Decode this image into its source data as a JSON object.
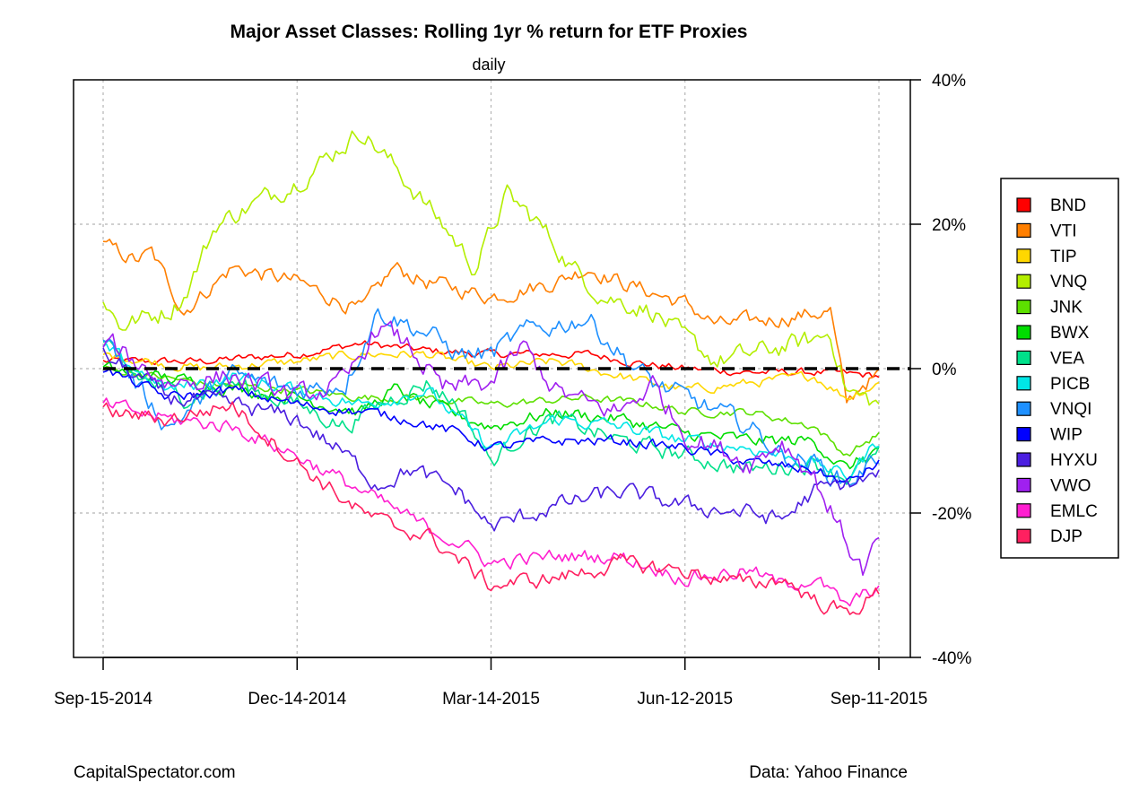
{
  "chart_data": {
    "type": "line",
    "title": "Major Asset Classes: Rolling 1yr % return for ETF Proxies",
    "subtitle": "daily",
    "xlabel": "",
    "ylabel": "",
    "x_start": "Sep-15-2014",
    "x_end": "Sep-11-2015",
    "x_ticks": [
      {
        "index": 0,
        "label": "Sep-15-2014"
      },
      {
        "index": 60,
        "label": "Dec-14-2014"
      },
      {
        "index": 120,
        "label": "Mar-14-2015"
      },
      {
        "index": 180,
        "label": "Jun-12-2015"
      },
      {
        "index": 240,
        "label": "Sep-11-2015"
      }
    ],
    "y_ticks": [
      {
        "value": 40,
        "label": "40%"
      },
      {
        "value": 20,
        "label": "20%"
      },
      {
        "value": 0,
        "label": "0%"
      },
      {
        "value": -20,
        "label": "-20%"
      },
      {
        "value": -40,
        "label": "-40%"
      }
    ],
    "xlim": [
      0,
      240
    ],
    "ylim": [
      -40,
      40
    ],
    "grid": true,
    "reference_line": 0,
    "legend_position": "right",
    "series": [
      {
        "name": "BND",
        "color": "#ff0000",
        "anchors": [
          [
            0,
            1
          ],
          [
            30,
            1
          ],
          [
            60,
            2
          ],
          [
            80,
            3.5
          ],
          [
            100,
            2.5
          ],
          [
            120,
            2
          ],
          [
            150,
            2
          ],
          [
            170,
            0.5
          ],
          [
            180,
            0
          ],
          [
            200,
            -0.5
          ],
          [
            220,
            -0.5
          ],
          [
            240,
            -1
          ]
        ],
        "noise": 0.6
      },
      {
        "name": "VTI",
        "color": "#ff7f00",
        "anchors": [
          [
            0,
            17
          ],
          [
            10,
            15
          ],
          [
            15,
            16
          ],
          [
            20,
            12
          ],
          [
            25,
            8
          ],
          [
            30,
            10
          ],
          [
            40,
            14
          ],
          [
            60,
            12
          ],
          [
            80,
            8
          ],
          [
            90,
            14
          ],
          [
            100,
            12
          ],
          [
            120,
            10
          ],
          [
            140,
            12
          ],
          [
            150,
            14
          ],
          [
            160,
            12
          ],
          [
            180,
            9
          ],
          [
            190,
            6
          ],
          [
            210,
            7
          ],
          [
            225,
            8
          ],
          [
            230,
            -5
          ],
          [
            235,
            -2
          ],
          [
            240,
            -1
          ]
        ],
        "noise": 1.2
      },
      {
        "name": "TIP",
        "color": "#ffd700",
        "anchors": [
          [
            0,
            2
          ],
          [
            30,
            0
          ],
          [
            60,
            1
          ],
          [
            80,
            2
          ],
          [
            100,
            2
          ],
          [
            120,
            0
          ],
          [
            140,
            1
          ],
          [
            160,
            -1
          ],
          [
            180,
            -3
          ],
          [
            200,
            -2
          ],
          [
            220,
            -1
          ],
          [
            230,
            -4
          ],
          [
            240,
            -2
          ]
        ],
        "noise": 0.7
      },
      {
        "name": "VNQ",
        "color": "#b3ee00",
        "anchors": [
          [
            0,
            10
          ],
          [
            5,
            6
          ],
          [
            20,
            8
          ],
          [
            25,
            10
          ],
          [
            35,
            20
          ],
          [
            60,
            26
          ],
          [
            80,
            33
          ],
          [
            90,
            28
          ],
          [
            105,
            20
          ],
          [
            115,
            14
          ],
          [
            125,
            24
          ],
          [
            135,
            20
          ],
          [
            145,
            14
          ],
          [
            155,
            10
          ],
          [
            170,
            8
          ],
          [
            180,
            4
          ],
          [
            190,
            1
          ],
          [
            210,
            3
          ],
          [
            220,
            4
          ],
          [
            225,
            5
          ],
          [
            230,
            -3
          ],
          [
            240,
            -5
          ]
        ],
        "noise": 1.5
      },
      {
        "name": "JNK",
        "color": "#5de000",
        "anchors": [
          [
            0,
            0
          ],
          [
            30,
            -2
          ],
          [
            60,
            -3
          ],
          [
            80,
            -4
          ],
          [
            100,
            -4
          ],
          [
            120,
            -5
          ],
          [
            150,
            -4
          ],
          [
            170,
            -5
          ],
          [
            180,
            -6
          ],
          [
            200,
            -6
          ],
          [
            220,
            -8
          ],
          [
            230,
            -12
          ],
          [
            240,
            -9
          ]
        ],
        "noise": 0.6
      },
      {
        "name": "BWX",
        "color": "#00dd00",
        "anchors": [
          [
            0,
            0
          ],
          [
            30,
            -2
          ],
          [
            60,
            -4
          ],
          [
            80,
            -6
          ],
          [
            90,
            -3
          ],
          [
            100,
            -5
          ],
          [
            120,
            -8
          ],
          [
            140,
            -6
          ],
          [
            160,
            -7
          ],
          [
            180,
            -9
          ],
          [
            200,
            -10
          ],
          [
            220,
            -10
          ],
          [
            230,
            -14
          ],
          [
            240,
            -11
          ]
        ],
        "noise": 1.0
      },
      {
        "name": "VEA",
        "color": "#00e08a",
        "anchors": [
          [
            0,
            3
          ],
          [
            10,
            -1
          ],
          [
            25,
            -4
          ],
          [
            40,
            -2
          ],
          [
            60,
            -5
          ],
          [
            75,
            -8
          ],
          [
            85,
            -5
          ],
          [
            100,
            -2
          ],
          [
            110,
            -5
          ],
          [
            120,
            -13
          ],
          [
            130,
            -9
          ],
          [
            140,
            -7
          ],
          [
            160,
            -10
          ],
          [
            180,
            -12
          ],
          [
            200,
            -14
          ],
          [
            220,
            -13
          ],
          [
            230,
            -15
          ],
          [
            240,
            -12
          ]
        ],
        "noise": 1.3
      },
      {
        "name": "PICB",
        "color": "#00e6e6",
        "anchors": [
          [
            0,
            3
          ],
          [
            20,
            -3
          ],
          [
            40,
            -1
          ],
          [
            60,
            -3
          ],
          [
            80,
            -5
          ],
          [
            100,
            -3
          ],
          [
            120,
            -11
          ],
          [
            140,
            -7
          ],
          [
            160,
            -8
          ],
          [
            180,
            -10
          ],
          [
            200,
            -11
          ],
          [
            220,
            -13
          ],
          [
            230,
            -15
          ],
          [
            240,
            -10
          ]
        ],
        "noise": 1.0
      },
      {
        "name": "VNQI",
        "color": "#1e90ff",
        "anchors": [
          [
            0,
            5
          ],
          [
            10,
            -2
          ],
          [
            20,
            -8
          ],
          [
            40,
            -1
          ],
          [
            60,
            -3
          ],
          [
            75,
            -2
          ],
          [
            85,
            8
          ],
          [
            100,
            5
          ],
          [
            110,
            2
          ],
          [
            120,
            2
          ],
          [
            130,
            5
          ],
          [
            140,
            6
          ],
          [
            150,
            7
          ],
          [
            160,
            2
          ],
          [
            170,
            -2
          ],
          [
            180,
            -4
          ],
          [
            200,
            -8
          ],
          [
            210,
            -12
          ],
          [
            220,
            -13
          ],
          [
            230,
            -16
          ],
          [
            240,
            -12
          ]
        ],
        "noise": 1.5
      },
      {
        "name": "WIP",
        "color": "#0000ff",
        "anchors": [
          [
            0,
            0
          ],
          [
            20,
            -4
          ],
          [
            40,
            -3
          ],
          [
            60,
            -5
          ],
          [
            80,
            -6
          ],
          [
            95,
            -7
          ],
          [
            110,
            -9
          ],
          [
            120,
            -11
          ],
          [
            140,
            -10
          ],
          [
            160,
            -10
          ],
          [
            180,
            -11
          ],
          [
            200,
            -13
          ],
          [
            220,
            -14
          ],
          [
            230,
            -16
          ],
          [
            240,
            -13
          ]
        ],
        "noise": 0.8
      },
      {
        "name": "HYXU",
        "color": "#4b1fe0",
        "anchors": [
          [
            0,
            2
          ],
          [
            20,
            -4
          ],
          [
            40,
            -5
          ],
          [
            60,
            -7
          ],
          [
            75,
            -12
          ],
          [
            85,
            -16
          ],
          [
            95,
            -14
          ],
          [
            110,
            -17
          ],
          [
            120,
            -22
          ],
          [
            140,
            -19
          ],
          [
            160,
            -17
          ],
          [
            180,
            -19
          ],
          [
            200,
            -20
          ],
          [
            210,
            -21
          ],
          [
            220,
            -17
          ],
          [
            230,
            -16
          ],
          [
            240,
            -15
          ]
        ],
        "noise": 1.3
      },
      {
        "name": "VWO",
        "color": "#a020f0",
        "anchors": [
          [
            0,
            4
          ],
          [
            20,
            -2
          ],
          [
            40,
            -1
          ],
          [
            60,
            -4
          ],
          [
            75,
            -2
          ],
          [
            85,
            6
          ],
          [
            95,
            3
          ],
          [
            105,
            -3
          ],
          [
            120,
            -2
          ],
          [
            130,
            3
          ],
          [
            140,
            -3
          ],
          [
            150,
            -5
          ],
          [
            160,
            -6
          ],
          [
            170,
            -2
          ],
          [
            180,
            -9
          ],
          [
            200,
            -13
          ],
          [
            210,
            -10
          ],
          [
            220,
            -15
          ],
          [
            230,
            -24
          ],
          [
            235,
            -28
          ],
          [
            240,
            -24
          ]
        ],
        "noise": 1.6
      },
      {
        "name": "EMLC",
        "color": "#ff1fd0",
        "anchors": [
          [
            0,
            -5
          ],
          [
            20,
            -7
          ],
          [
            40,
            -8
          ],
          [
            60,
            -12
          ],
          [
            80,
            -17
          ],
          [
            100,
            -22
          ],
          [
            110,
            -24
          ],
          [
            120,
            -27
          ],
          [
            140,
            -26
          ],
          [
            160,
            -26
          ],
          [
            180,
            -29
          ],
          [
            200,
            -28
          ],
          [
            210,
            -30
          ],
          [
            220,
            -29
          ],
          [
            230,
            -33
          ],
          [
            240,
            -30
          ]
        ],
        "noise": 1.1
      },
      {
        "name": "DJP",
        "color": "#ff2060",
        "anchors": [
          [
            0,
            -6
          ],
          [
            20,
            -7
          ],
          [
            40,
            -5
          ],
          [
            60,
            -13
          ],
          [
            80,
            -20
          ],
          [
            90,
            -22
          ],
          [
            100,
            -23
          ],
          [
            120,
            -30
          ],
          [
            140,
            -29
          ],
          [
            160,
            -27
          ],
          [
            180,
            -28
          ],
          [
            200,
            -30
          ],
          [
            210,
            -29
          ],
          [
            220,
            -32
          ],
          [
            230,
            -34
          ],
          [
            240,
            -31
          ]
        ],
        "noise": 1.2
      }
    ]
  },
  "footer": {
    "left": "CapitalSpectator.com",
    "right": "Data: Yahoo Finance"
  }
}
